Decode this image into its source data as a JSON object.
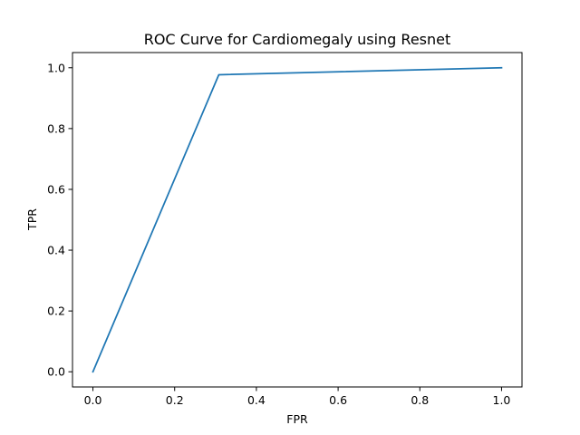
{
  "chart_data": {
    "type": "line",
    "title": "ROC Curve for Cardiomegaly using Resnet",
    "xlabel": "FPR",
    "ylabel": "TPR",
    "xlim": [
      -0.05,
      1.05
    ],
    "ylim": [
      -0.05,
      1.05
    ],
    "xticks": [
      0.0,
      0.2,
      0.4,
      0.6,
      0.8,
      1.0
    ],
    "yticks": [
      0.0,
      0.2,
      0.4,
      0.6,
      0.8,
      1.0
    ],
    "xtick_labels": [
      "0.0",
      "0.2",
      "0.4",
      "0.6",
      "0.8",
      "1.0"
    ],
    "ytick_labels": [
      "0.0",
      "0.2",
      "0.4",
      "0.6",
      "0.8",
      "1.0"
    ],
    "grid": false,
    "series": [
      {
        "x": [
          0.0,
          0.308,
          1.0
        ],
        "y": [
          0.0,
          0.977,
          1.0
        ],
        "color": "#1f77b4"
      }
    ]
  }
}
